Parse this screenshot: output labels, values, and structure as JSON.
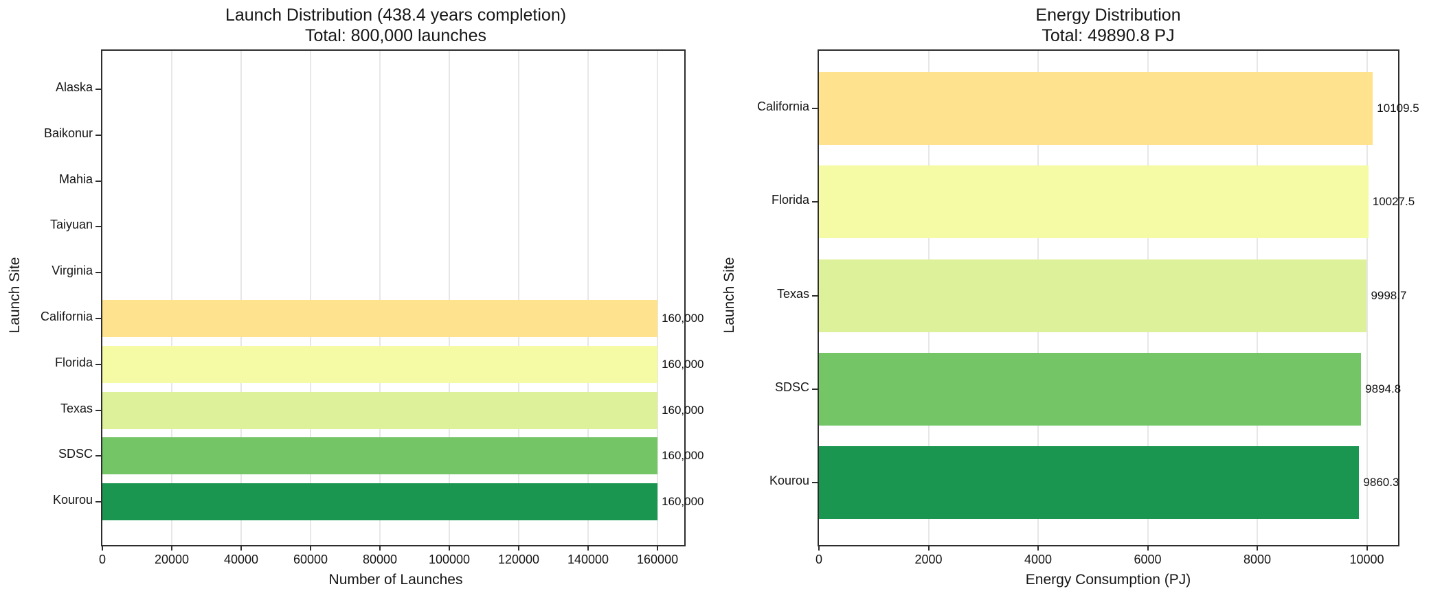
{
  "figure": {
    "background": "#ffffff"
  },
  "chart_data": [
    {
      "id": "launch-distribution",
      "type": "bar",
      "orientation": "horizontal",
      "title": "Launch Distribution (438.4 years completion)",
      "subtitle": "Total: 800,000 launches",
      "xlabel": "Number of Launches",
      "ylabel": "Launch Site",
      "categories": [
        "Alaska",
        "Baikonur",
        "Mahia",
        "Taiyuan",
        "Virginia",
        "California",
        "Florida",
        "Texas",
        "SDSC",
        "Kourou"
      ],
      "values": [
        0,
        0,
        0,
        0,
        0,
        160000,
        160000,
        160000,
        160000,
        160000
      ],
      "value_labels": [
        "",
        "",
        "",
        "",
        "",
        "160,000",
        "160,000",
        "160,000",
        "160,000",
        "160,000"
      ],
      "bar_colors": [
        null,
        null,
        null,
        null,
        null,
        "#fee28e",
        "#f5faa5",
        "#ddf09a",
        "#74c566",
        "#1b9651"
      ],
      "xlim": [
        0,
        168500
      ],
      "xticks": [
        0,
        20000,
        40000,
        60000,
        80000,
        100000,
        120000,
        140000,
        160000
      ],
      "xtick_labels": [
        "0",
        "20000",
        "40000",
        "60000",
        "80000",
        "100000",
        "120000",
        "140000",
        "160000"
      ],
      "grid": true,
      "legend": false
    },
    {
      "id": "energy-distribution",
      "type": "bar",
      "orientation": "horizontal",
      "title": "Energy Distribution",
      "subtitle": "Total: 49890.8 PJ",
      "xlabel": "Energy Consumption (PJ)",
      "ylabel": "Launch Site",
      "categories": [
        "California",
        "Florida",
        "Texas",
        "SDSC",
        "Kourou"
      ],
      "values": [
        10109.5,
        10027.5,
        9998.7,
        9894.8,
        9860.3
      ],
      "value_labels": [
        "10109.5",
        "10027.5",
        "9998.7",
        "9894.8",
        "9860.3"
      ],
      "bar_colors": [
        "#fee28e",
        "#f5faa5",
        "#ddf09a",
        "#74c566",
        "#1b9651"
      ],
      "xlim": [
        0,
        10620
      ],
      "xticks": [
        0,
        2000,
        4000,
        6000,
        8000,
        10000
      ],
      "xtick_labels": [
        "0",
        "2000",
        "4000",
        "6000",
        "8000",
        "10000"
      ],
      "grid": true,
      "legend": false
    }
  ]
}
